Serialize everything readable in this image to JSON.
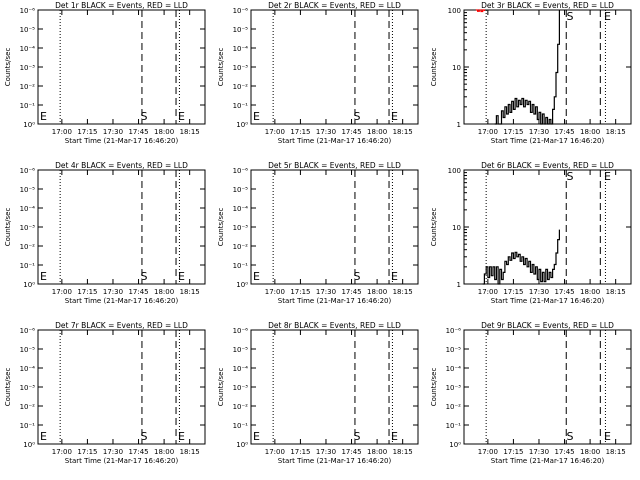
{
  "colors": {
    "events": "#000000",
    "lld": "#ff0000",
    "background": "#ffffff"
  },
  "chart_data": [
    {
      "type": "line",
      "title": "Det 1r BLACK = Events, RED = LLD",
      "xlabel": "Start Time (21-Mar-17 16:46:20)",
      "ylabel": "Counts/sec",
      "x_ticks": [
        "17:00",
        "17:15",
        "17:30",
        "17:45",
        "18:00",
        "18:15"
      ],
      "y_scale": "log",
      "y_ticks": [
        "10⁰",
        "10⁻¹",
        "10⁻²",
        "10⁻³",
        "10⁻⁴",
        "10⁻⁵",
        "10⁻⁶"
      ],
      "markers": [
        {
          "label": "E",
          "time": "16:46"
        },
        {
          "label": "S",
          "time": "17:45"
        },
        {
          "label": "E",
          "time": "18:07"
        }
      ],
      "dotted_times": [
        "16:59",
        "18:09"
      ],
      "dashed_times": [
        "17:47",
        "18:07"
      ],
      "series": []
    },
    {
      "type": "line",
      "title": "Det 2r BLACK = Events, RED = LLD",
      "xlabel": "Start Time (21-Mar-17 16:46:20)",
      "ylabel": "Counts/sec",
      "x_ticks": [
        "17:00",
        "17:15",
        "17:30",
        "17:45",
        "18:00",
        "18:15"
      ],
      "y_scale": "log",
      "y_ticks": [
        "10⁰",
        "10⁻¹",
        "10⁻²",
        "10⁻³",
        "10⁻⁴",
        "10⁻⁵",
        "10⁻⁶"
      ],
      "markers": [
        {
          "label": "E",
          "time": "16:46"
        },
        {
          "label": "S",
          "time": "17:45"
        },
        {
          "label": "E",
          "time": "18:07"
        }
      ],
      "dotted_times": [
        "16:59",
        "18:09"
      ],
      "dashed_times": [
        "17:47",
        "18:07"
      ],
      "series": []
    },
    {
      "type": "line",
      "title": "Det 3r BLACK = Events, RED = LLD",
      "xlabel": "Start Time (21-Mar-17 16:46:20)",
      "ylabel": "Counts/sec",
      "x_ticks": [
        "17:00",
        "17:15",
        "17:30",
        "17:45",
        "18:00",
        "18:15"
      ],
      "y_scale": "log",
      "y_ticks": [
        "1",
        "10",
        "100"
      ],
      "markers": [
        {
          "label": "S",
          "time": "17:45"
        },
        {
          "label": "E",
          "time": "18:07"
        }
      ],
      "dotted_times": [
        "16:59",
        "18:09"
      ],
      "dashed_times": [
        "17:46",
        "18:06"
      ],
      "series": [
        {
          "color": "#000000",
          "points": [
            [
              "17:04",
              1
            ],
            [
              "17:05",
              1.4
            ],
            [
              "17:06",
              1
            ],
            [
              "17:08",
              1.7
            ],
            [
              "17:09",
              1.3
            ],
            [
              "17:10",
              2.0
            ],
            [
              "17:11",
              1.5
            ],
            [
              "17:12",
              2.2
            ],
            [
              "17:13",
              1.6
            ],
            [
              "17:14",
              2.5
            ],
            [
              "17:15",
              1.8
            ],
            [
              "17:16",
              2.8
            ],
            [
              "17:17",
              2.0
            ],
            [
              "17:18",
              2.6
            ],
            [
              "17:19",
              2.2
            ],
            [
              "17:20",
              2.8
            ],
            [
              "17:21",
              2.0
            ],
            [
              "17:22",
              2.6
            ],
            [
              "17:23",
              2.2
            ],
            [
              "17:24",
              2.5
            ],
            [
              "17:25",
              1.6
            ],
            [
              "17:26",
              2.2
            ],
            [
              "17:27",
              1.5
            ],
            [
              "17:28",
              2.0
            ],
            [
              "17:29",
              1.2
            ],
            [
              "17:30",
              1.6
            ],
            [
              "17:31",
              1.0
            ],
            [
              "17:32",
              1.5
            ],
            [
              "17:33",
              1.0
            ],
            [
              "17:34",
              1.3
            ],
            [
              "17:35",
              1.0
            ],
            [
              "17:36",
              1.2
            ],
            [
              "17:37",
              1.0
            ],
            [
              "17:38",
              1.8
            ],
            [
              "17:39",
              3.0
            ],
            [
              "17:40",
              8.0
            ],
            [
              "17:41",
              25.0
            ],
            [
              "17:42",
              100.0
            ]
          ]
        },
        {
          "color": "#ff0000",
          "points": [
            [
              "16:53",
              100
            ],
            [
              "16:54",
              95
            ],
            [
              "16:55",
              100
            ],
            [
              "16:56",
              94
            ],
            [
              "16:57",
              100
            ],
            [
              "16:58",
              96
            ]
          ]
        }
      ]
    },
    {
      "type": "line",
      "title": "Det 4r BLACK = Events, RED = LLD",
      "xlabel": "Start Time (21-Mar-17 16:46:20)",
      "ylabel": "Counts/sec",
      "x_ticks": [
        "17:00",
        "17:15",
        "17:30",
        "17:45",
        "18:00",
        "18:15"
      ],
      "y_scale": "log",
      "y_ticks": [
        "10⁰",
        "10⁻¹",
        "10⁻²",
        "10⁻³",
        "10⁻⁴",
        "10⁻⁵",
        "10⁻⁶"
      ],
      "markers": [
        {
          "label": "E",
          "time": "16:46"
        },
        {
          "label": "S",
          "time": "17:45"
        },
        {
          "label": "E",
          "time": "18:07"
        }
      ],
      "dotted_times": [
        "16:59",
        "18:09"
      ],
      "dashed_times": [
        "17:47",
        "18:07"
      ],
      "series": []
    },
    {
      "type": "line",
      "title": "Det 5r BLACK = Events, RED = LLD",
      "xlabel": "Start Time (21-Mar-17 16:46:20)",
      "ylabel": "Counts/sec",
      "x_ticks": [
        "17:00",
        "17:15",
        "17:30",
        "17:45",
        "18:00",
        "18:15"
      ],
      "y_scale": "log",
      "y_ticks": [
        "10⁰",
        "10⁻¹",
        "10⁻²",
        "10⁻³",
        "10⁻⁴",
        "10⁻⁵",
        "10⁻⁶"
      ],
      "markers": [
        {
          "label": "E",
          "time": "16:46"
        },
        {
          "label": "S",
          "time": "17:45"
        },
        {
          "label": "E",
          "time": "18:07"
        }
      ],
      "dotted_times": [
        "16:59",
        "18:09"
      ],
      "dashed_times": [
        "17:47",
        "18:07"
      ],
      "series": []
    },
    {
      "type": "line",
      "title": "Det 6r BLACK = Events, RED = LLD",
      "xlabel": "Start Time (21-Mar-17 16:46:20)",
      "ylabel": "Counts/sec",
      "x_ticks": [
        "17:00",
        "17:15",
        "17:30",
        "17:45",
        "18:00",
        "18:15"
      ],
      "y_scale": "log",
      "y_ticks": [
        "1",
        "10",
        "100"
      ],
      "markers": [
        {
          "label": "S",
          "time": "17:45"
        },
        {
          "label": "E",
          "time": "18:07"
        }
      ],
      "dotted_times": [
        "16:59",
        "18:09"
      ],
      "dashed_times": [
        "17:46",
        "18:06"
      ],
      "series": [
        {
          "color": "#000000",
          "points": [
            [
              "16:57",
              1
            ],
            [
              "16:58",
              1.5
            ],
            [
              "16:59",
              2.0
            ],
            [
              "17:00",
              1.3
            ],
            [
              "17:01",
              2.0
            ],
            [
              "17:02",
              1.4
            ],
            [
              "17:03",
              2.0
            ],
            [
              "17:04",
              1.2
            ],
            [
              "17:05",
              2.0
            ],
            [
              "17:06",
              1.0
            ],
            [
              "17:07",
              1.8
            ],
            [
              "17:08",
              1.2
            ],
            [
              "17:09",
              1.6
            ],
            [
              "17:10",
              2.5
            ],
            [
              "17:11",
              2.2
            ],
            [
              "17:12",
              3.0
            ],
            [
              "17:13",
              2.6
            ],
            [
              "17:14",
              3.5
            ],
            [
              "17:15",
              2.8
            ],
            [
              "17:16",
              3.6
            ],
            [
              "17:17",
              3.0
            ],
            [
              "17:18",
              3.3
            ],
            [
              "17:19",
              2.5
            ],
            [
              "17:20",
              3.0
            ],
            [
              "17:21",
              2.2
            ],
            [
              "17:22",
              2.8
            ],
            [
              "17:23",
              2.0
            ],
            [
              "17:24",
              2.5
            ],
            [
              "17:25",
              1.6
            ],
            [
              "17:26",
              2.2
            ],
            [
              "17:27",
              1.5
            ],
            [
              "17:28",
              2.0
            ],
            [
              "17:29",
              1.2
            ],
            [
              "17:30",
              1.8
            ],
            [
              "17:31",
              1.1
            ],
            [
              "17:32",
              1.6
            ],
            [
              "17:33",
              1.1
            ],
            [
              "17:34",
              1.8
            ],
            [
              "17:35",
              1.2
            ],
            [
              "17:36",
              1.6
            ],
            [
              "17:37",
              1.3
            ],
            [
              "17:38",
              1.8
            ],
            [
              "17:39",
              2.2
            ],
            [
              "17:40",
              3.5
            ],
            [
              "17:41",
              6.0
            ],
            [
              "17:42",
              9.0
            ]
          ]
        }
      ]
    },
    {
      "type": "line",
      "title": "Det 7r BLACK = Events, RED = LLD",
      "xlabel": "Start Time (21-Mar-17 16:46:20)",
      "ylabel": "Counts/sec",
      "x_ticks": [
        "17:00",
        "17:15",
        "17:30",
        "17:45",
        "18:00",
        "18:15"
      ],
      "y_scale": "log",
      "y_ticks": [
        "10⁰",
        "10⁻¹",
        "10⁻²",
        "10⁻³",
        "10⁻⁴",
        "10⁻⁵",
        "10⁻⁶"
      ],
      "markers": [
        {
          "label": "E",
          "time": "16:46"
        },
        {
          "label": "S",
          "time": "17:45"
        },
        {
          "label": "E",
          "time": "18:07"
        }
      ],
      "dotted_times": [
        "16:59",
        "18:09"
      ],
      "dashed_times": [
        "17:47",
        "18:07"
      ],
      "series": []
    },
    {
      "type": "line",
      "title": "Det 8r BLACK = Events, RED = LLD",
      "xlabel": "Start Time (21-Mar-17 16:46:20)",
      "ylabel": "Counts/sec",
      "x_ticks": [
        "17:00",
        "17:15",
        "17:30",
        "17:45",
        "18:00",
        "18:15"
      ],
      "y_scale": "log",
      "y_ticks": [
        "10⁰",
        "10⁻¹",
        "10⁻²",
        "10⁻³",
        "10⁻⁴",
        "10⁻⁵",
        "10⁻⁶"
      ],
      "markers": [
        {
          "label": "E",
          "time": "16:46"
        },
        {
          "label": "S",
          "time": "17:45"
        },
        {
          "label": "E",
          "time": "18:07"
        }
      ],
      "dotted_times": [
        "16:59",
        "18:09"
      ],
      "dashed_times": [
        "17:47",
        "18:07"
      ],
      "series": []
    },
    {
      "type": "line",
      "title": "Det 9r BLACK = Events, RED = LLD",
      "xlabel": "Start Time (21-Mar-17 16:46:20)",
      "ylabel": "Counts/sec",
      "x_ticks": [
        "17:00",
        "17:15",
        "17:30",
        "17:45",
        "18:00",
        "18:15"
      ],
      "y_scale": "log",
      "y_ticks": [
        "10⁰",
        "10⁻¹",
        "10⁻²",
        "10⁻³",
        "10⁻⁴",
        "10⁻⁵",
        "10⁻⁶"
      ],
      "markers": [
        {
          "label": "S",
          "time": "17:45"
        },
        {
          "label": "E",
          "time": "18:07"
        }
      ],
      "dotted_times": [
        "16:59",
        "18:09"
      ],
      "dashed_times": [
        "17:46",
        "18:06"
      ],
      "series": []
    }
  ]
}
